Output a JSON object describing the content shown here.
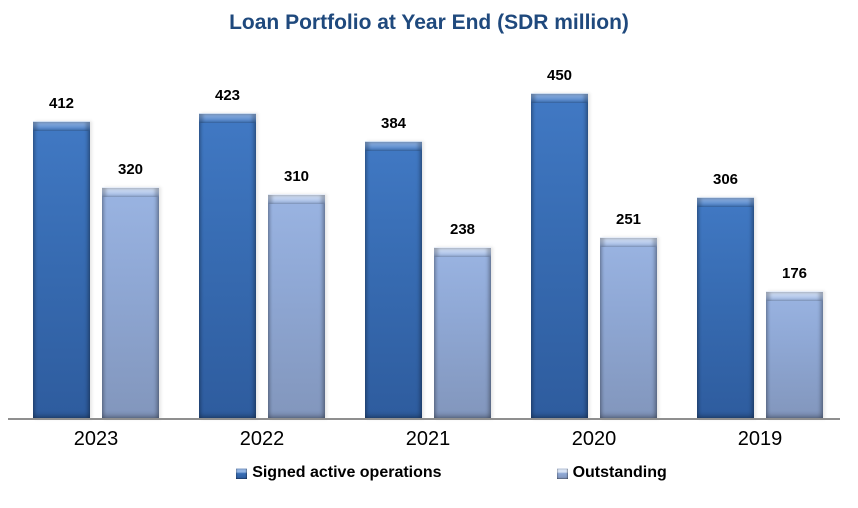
{
  "title": "Loan Portfolio at Year End (SDR million)",
  "colors": {
    "title_text": "#1F497D",
    "axis_line": "#8F8F8F",
    "value_label_text": "#000000",
    "category_label_text": "#000000",
    "background": "#FFFFFF"
  },
  "chart_data": {
    "type": "bar",
    "title": "Loan Portfolio at Year End (SDR million)",
    "xlabel": "",
    "ylabel": "",
    "categories": [
      "2023",
      "2022",
      "2021",
      "2020",
      "2019"
    ],
    "series": [
      {
        "name": "Signed active operations",
        "values": [
          412,
          423,
          384,
          450,
          306
        ],
        "color": {
          "top": "#4179C4",
          "mid": "#386DB4",
          "bottom": "#2E5C9E",
          "cap_top": "#93B5E4",
          "cap_bottom": "#4077C0"
        }
      },
      {
        "name": "Outstanding",
        "values": [
          320,
          310,
          238,
          251,
          176
        ],
        "color": {
          "top": "#9AB4E2",
          "mid": "#8FA8D5",
          "bottom": "#8296BC",
          "cap_top": "#D8E3F5",
          "cap_bottom": "#9AB4E2"
        }
      }
    ],
    "ylim": [
      0,
      450
    ],
    "grid": false,
    "y_axis_visible": false,
    "value_labels": true,
    "legend_position": "bottom"
  }
}
